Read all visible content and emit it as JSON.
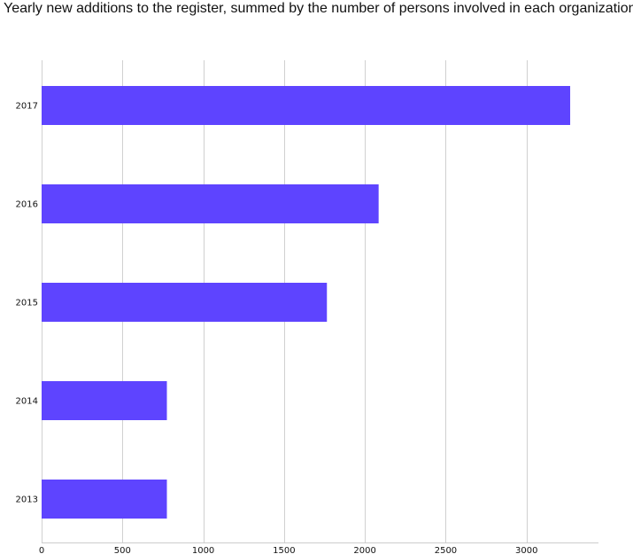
{
  "chart_data": {
    "type": "bar",
    "orientation": "horizontal",
    "title": "Yearly new additions to the register, summed by the number of persons involved in each organization",
    "xlabel": "",
    "ylabel": "",
    "categories": [
      "2017",
      "2016",
      "2015",
      "2014",
      "2013"
    ],
    "values": [
      3270,
      2085,
      1765,
      775,
      775
    ],
    "xlim": [
      0,
      3400
    ],
    "xticks": [
      0,
      500,
      1000,
      1500,
      2000,
      2500,
      3000
    ],
    "grid": true,
    "legend": "none",
    "bar_color": "#5e44ff",
    "grid_color": "#d0d0d0",
    "axis_color": "#cccccc"
  }
}
